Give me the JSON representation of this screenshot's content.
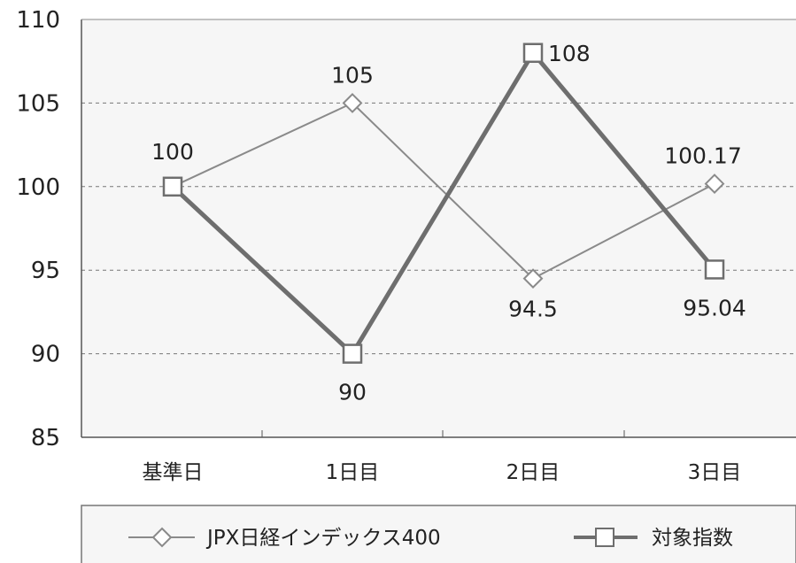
{
  "chart_data": {
    "type": "line",
    "title": "",
    "xlabel": "",
    "ylabel": "",
    "categories": [
      "基準日",
      "1日目",
      "2日目",
      "3日目"
    ],
    "ylim": [
      85,
      110
    ],
    "yticks": [
      110,
      105,
      100,
      95,
      90,
      85
    ],
    "grid": "horizontal dashed",
    "legend_position": "bottom",
    "series": [
      {
        "name": "JPX日経インデックス400",
        "values": [
          100,
          105,
          94.5,
          100.17
        ],
        "labels": [
          "",
          "105",
          "94.5",
          "100.17"
        ],
        "marker": "diamond",
        "color": "#8a8a8a"
      },
      {
        "name": "対象指数",
        "values": [
          100,
          90,
          108,
          95.04
        ],
        "labels": [
          "100",
          "90",
          "108",
          "95.04"
        ],
        "marker": "square",
        "color": "#6e6e6e"
      }
    ]
  }
}
